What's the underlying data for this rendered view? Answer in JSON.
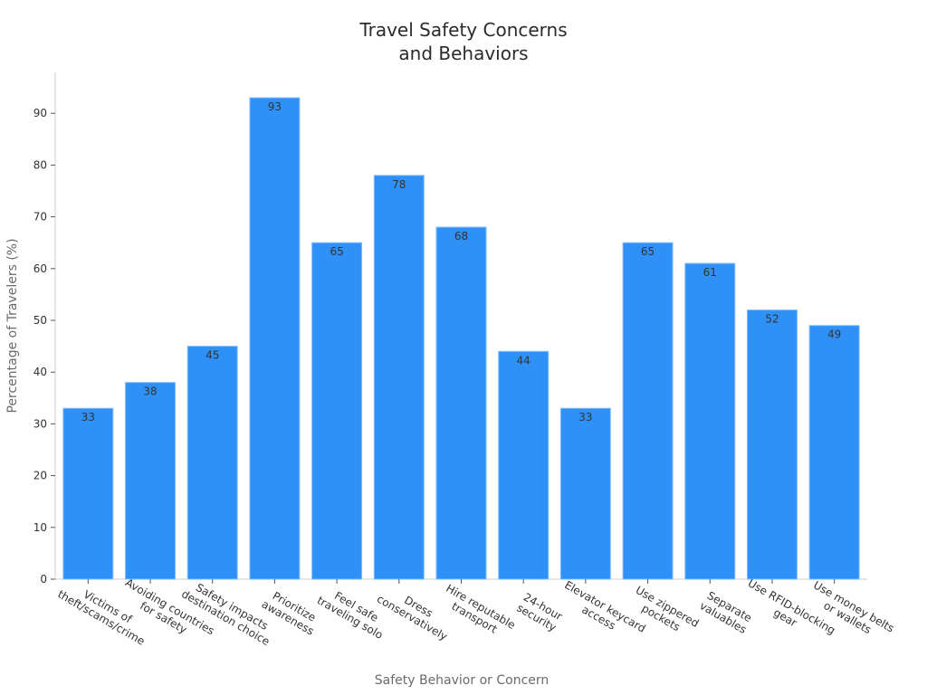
{
  "chart_data": {
    "type": "bar",
    "title_lines": [
      "Travel Safety Concerns",
      "and Behaviors"
    ],
    "xlabel": "Safety Behavior or Concern",
    "ylabel": "Percentage of Travelers (%)",
    "ylim": [
      0,
      98
    ],
    "yticks": [
      0,
      10,
      20,
      30,
      40,
      50,
      60,
      70,
      80,
      90
    ],
    "grid": false,
    "bar_color": "#2f91f8",
    "categories": [
      [
        "Victims of",
        "theft/scams/crime"
      ],
      [
        "Avoiding countries",
        "for safety"
      ],
      [
        "Safety impacts",
        "destination choice"
      ],
      [
        "Prioritize",
        "awareness"
      ],
      [
        "Feel safe",
        "traveling solo"
      ],
      [
        "Dress",
        "conservatively"
      ],
      [
        "Hire reputable",
        "transport"
      ],
      [
        "24-hour",
        "security"
      ],
      [
        "Elevator keycard",
        "access"
      ],
      [
        "Use zippered",
        "pockets"
      ],
      [
        "Separate",
        "valuables"
      ],
      [
        "Use RFID-blocking",
        "gear"
      ],
      [
        "Use money belts",
        "or wallets"
      ]
    ],
    "values": [
      33,
      38,
      45,
      93,
      65,
      78,
      68,
      44,
      33,
      65,
      61,
      52,
      49
    ]
  }
}
